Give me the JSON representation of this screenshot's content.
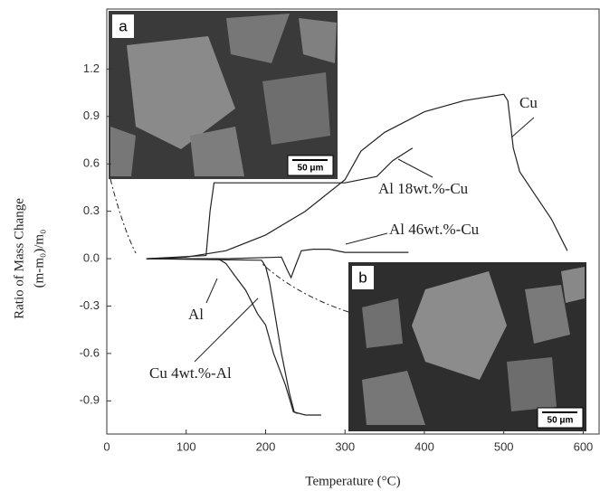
{
  "chart_data": {
    "type": "line",
    "x_label": "Temperature (°C)",
    "y_label": [
      "Ratio of  Mass Change",
      "(m-m₀)/m₀"
    ],
    "xlim": [
      0,
      620
    ],
    "xticks": [
      0,
      100,
      200,
      300,
      400,
      500,
      600
    ],
    "ylim": [
      -1.11,
      1.58
    ],
    "yticks": [
      -0.9,
      -0.6,
      -0.3,
      {
        "value": 0,
        "label": "0.0"
      },
      0.3,
      0.6,
      0.9,
      1.2
    ],
    "series": [
      {
        "name": "Cu",
        "color": "#222222",
        "x": [
          50,
          100,
          150,
          200,
          250,
          300,
          320,
          350,
          400,
          450,
          500,
          505,
          512,
          520,
          540,
          560,
          580
        ],
        "values": [
          0,
          0.01,
          0.05,
          0.15,
          0.3,
          0.5,
          0.68,
          0.8,
          0.93,
          1.0,
          1.04,
          1.0,
          0.7,
          0.55,
          0.4,
          0.25,
          0.05
        ]
      },
      {
        "name": "Al 18wt.%-Cu",
        "color": "#222222",
        "x": [
          50,
          125,
          130,
          135,
          150,
          200,
          250,
          300,
          340,
          360,
          385
        ],
        "values": [
          0,
          0.02,
          0.3,
          0.48,
          0.48,
          0.48,
          0.48,
          0.48,
          0.52,
          0.62,
          0.7
        ]
      },
      {
        "name": "Al 46wt.%-Cu",
        "color": "#222222",
        "x": [
          50,
          150,
          220,
          228,
          232,
          238,
          245,
          260,
          280,
          300,
          340,
          380
        ],
        "values": [
          0,
          0,
          0.01,
          -0.08,
          -0.12,
          -0.04,
          0.05,
          0.06,
          0.06,
          0.04,
          0.04,
          0.04
        ]
      },
      {
        "name": "Al",
        "color": "#222222",
        "x": [
          50,
          140,
          150,
          160,
          175,
          190,
          200,
          210,
          225,
          235,
          250,
          270
        ],
        "values": [
          0,
          0,
          -0.03,
          -0.1,
          -0.2,
          -0.35,
          -0.42,
          -0.6,
          -0.8,
          -0.97,
          -0.99,
          -0.99
        ]
      },
      {
        "name": "Cu 4wt.%-Al",
        "color": "#222222",
        "x": [
          50,
          195,
          200,
          205,
          210,
          220,
          230,
          236,
          240
        ],
        "values": [
          0,
          -0.01,
          -0.05,
          -0.15,
          -0.3,
          -0.6,
          -0.85,
          -0.97,
          -0.98
        ]
      }
    ],
    "insets": [
      {
        "label": "a",
        "scale_bar": "50 μm"
      },
      {
        "label": "b",
        "scale_bar": "50 μm"
      }
    ]
  }
}
